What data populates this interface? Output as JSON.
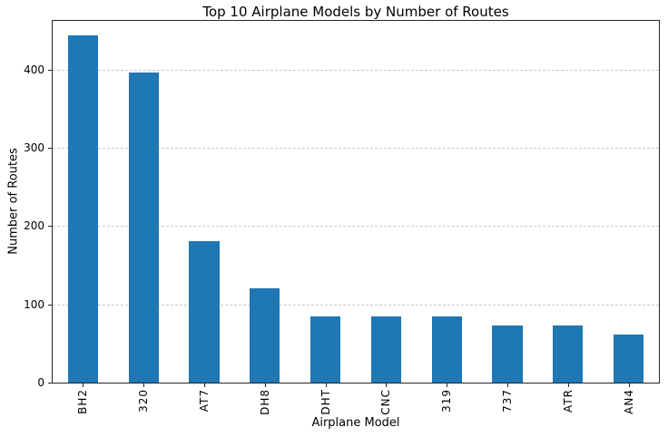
{
  "chart_data": {
    "type": "bar",
    "title": "Top 10 Airplane Models by Number of Routes",
    "xlabel": "Airplane Model",
    "ylabel": "Number of Routes",
    "categories": [
      "BH2",
      "320",
      "AT7",
      "DH8",
      "DHT",
      "CNC",
      "319",
      "737",
      "ATR",
      "AN4"
    ],
    "values": [
      443,
      396,
      181,
      121,
      85,
      85,
      85,
      73,
      73,
      61
    ],
    "ylim": [
      0,
      462
    ],
    "yticks": [
      0,
      100,
      200,
      300,
      400
    ],
    "bar_color": "#1f77b4",
    "grid": true,
    "grid_line_style": "dashed",
    "grid_axis": "y",
    "legend_position": "none"
  }
}
